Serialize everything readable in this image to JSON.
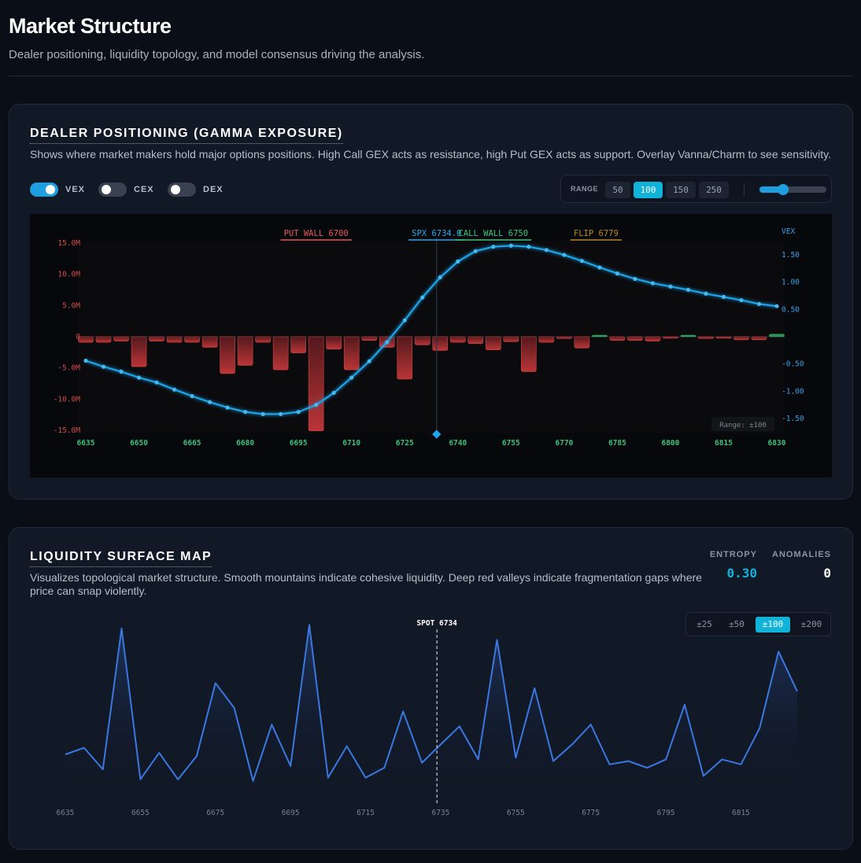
{
  "page": {
    "title": "Market Structure",
    "subtitle": "Dealer positioning, liquidity topology, and model consensus driving the analysis."
  },
  "gex_panel": {
    "title": "DEALER POSITIONING (GAMMA EXPOSURE)",
    "description": "Shows where market makers hold major options positions. High Call GEX acts as resistance, high Put GEX acts as support. Overlay Vanna/Charm to see sensitivity.",
    "toggles": [
      {
        "label": "VEX",
        "on": true
      },
      {
        "label": "CEX",
        "on": false
      },
      {
        "label": "DEX",
        "on": false
      }
    ],
    "range_label": "RANGE",
    "range_options": [
      "50",
      "100",
      "150",
      "250"
    ],
    "range_selected": "100",
    "slider_value": 0.35
  },
  "chart_data": [
    {
      "type": "bar",
      "title": "",
      "x": [
        6635,
        6640,
        6645,
        6650,
        6655,
        6660,
        6665,
        6670,
        6675,
        6680,
        6685,
        6690,
        6695,
        6700,
        6705,
        6710,
        6715,
        6720,
        6725,
        6730,
        6735,
        6740,
        6745,
        6750,
        6755,
        6760,
        6765,
        6770,
        6775,
        6780,
        6785,
        6790,
        6795,
        6800,
        6805,
        6810,
        6815,
        6820,
        6825,
        6830
      ],
      "gex_values_m": [
        -0.9,
        -0.9,
        -0.7,
        -4.8,
        -0.7,
        -0.9,
        -0.9,
        -1.7,
        -5.9,
        -4.6,
        -0.9,
        -5.3,
        -2.6,
        -15.1,
        -2.0,
        -5.3,
        -0.6,
        -1.7,
        -6.8,
        -1.3,
        -2.2,
        -0.9,
        -1.1,
        -2.1,
        -0.8,
        -5.6,
        -0.9,
        -0.3,
        -1.8,
        0.2,
        -0.6,
        -0.6,
        -0.7,
        -0.2,
        0.1,
        -0.3,
        -0.2,
        -0.5,
        -0.5,
        0.4
      ],
      "vex_values": [
        -0.44,
        -0.55,
        -0.64,
        -0.75,
        -0.84,
        -0.97,
        -1.09,
        -1.2,
        -1.3,
        -1.38,
        -1.42,
        -1.42,
        -1.38,
        -1.25,
        -1.03,
        -0.75,
        -0.45,
        -0.1,
        0.3,
        0.72,
        1.09,
        1.38,
        1.57,
        1.65,
        1.67,
        1.65,
        1.59,
        1.5,
        1.39,
        1.27,
        1.16,
        1.06,
        0.98,
        0.92,
        0.86,
        0.79,
        0.73,
        0.67,
        0.6,
        0.56
      ],
      "left_axis_title": "",
      "left_axis_ticks": [
        "15.0M",
        "10.0M",
        "5.0M",
        "0",
        "-5.0M",
        "-10.0M",
        "-15.0M"
      ],
      "left_axis_values": [
        15,
        10,
        5,
        0,
        -5,
        -10,
        -15
      ],
      "right_axis_title": "VEX",
      "right_axis_ticks": [
        "1.50",
        "1.00",
        "0.50",
        "-0.50",
        "-1.00",
        "-1.50"
      ],
      "right_axis_values": [
        1.5,
        1.0,
        0.5,
        -0.5,
        -1.0,
        -1.5
      ],
      "x_ticks": [
        "6635",
        "6650",
        "6665",
        "6680",
        "6695",
        "6710",
        "6725",
        "6740",
        "6755",
        "6770",
        "6785",
        "6800",
        "6815",
        "6830"
      ],
      "ylim_left": [
        -15.6,
        15.6
      ],
      "ylim_right": [
        -1.75,
        1.75
      ],
      "markers": [
        {
          "label": "PUT WALL 6700",
          "strike": 6700,
          "color": "#e05a5a"
        },
        {
          "label": "SPX 6734.0",
          "strike": 6734,
          "color": "#2aa8e8"
        },
        {
          "label": "CALL WALL 6750",
          "strike": 6750,
          "color": "#3ec27a"
        },
        {
          "label": "FLIP 6779",
          "strike": 6779,
          "color": "#b8891f"
        }
      ],
      "spot": 6734,
      "range_note": "Range: ±100"
    },
    {
      "type": "area",
      "title": "",
      "x": [
        6635,
        6640,
        6645,
        6650,
        6655,
        6660,
        6665,
        6670,
        6675,
        6680,
        6685,
        6690,
        6695,
        6700,
        6705,
        6710,
        6715,
        6720,
        6725,
        6730,
        6735,
        6740,
        6745,
        6750,
        6755,
        6760,
        6765,
        6770,
        6775,
        6780,
        6785,
        6790,
        6795,
        6800,
        6805,
        6810,
        6815,
        6820,
        6825,
        6830
      ],
      "values": [
        0.18,
        0.22,
        0.09,
        0.94,
        0.03,
        0.19,
        0.03,
        0.17,
        0.61,
        0.46,
        0.02,
        0.36,
        0.11,
        0.96,
        0.04,
        0.23,
        0.04,
        0.1,
        0.44,
        0.13,
        0.24,
        0.35,
        0.15,
        0.87,
        0.16,
        0.58,
        0.14,
        0.24,
        0.36,
        0.12,
        0.14,
        0.1,
        0.15,
        0.48,
        0.05,
        0.15,
        0.12,
        0.34,
        0.8,
        0.56
      ],
      "x_ticks": [
        "6635",
        "6655",
        "6675",
        "6695",
        "6715",
        "6735",
        "6755",
        "6775",
        "6795",
        "6815"
      ],
      "spot_label": "SPOT 6734",
      "spot": 6734
    }
  ],
  "liq_panel": {
    "title": "LIQUIDITY SURFACE MAP",
    "description_1": "Visualizes topological market structure. Smooth mountains indicate cohesive liquidity. Deep red valleys indicate fragmentation gaps where",
    "description_2": "price can snap violently.",
    "entropy_label": "ENTROPY",
    "entropy_value": "0.30",
    "anomalies_label": "ANOMALIES",
    "anomalies_value": "0",
    "zoom_options": [
      "±25",
      "±50",
      "±100",
      "±200"
    ],
    "zoom_selected": "±100"
  },
  "colors": {
    "accent": "#12b3d8",
    "vex_line": "#1fa4e8",
    "put_bar": "#c23a3a",
    "call_bar": "#2f9a5a",
    "surface_line": "#3a78e0",
    "axis_red": "#d44a4a",
    "axis_green": "#3ec27a",
    "axis_blue": "#3aa2e6"
  }
}
